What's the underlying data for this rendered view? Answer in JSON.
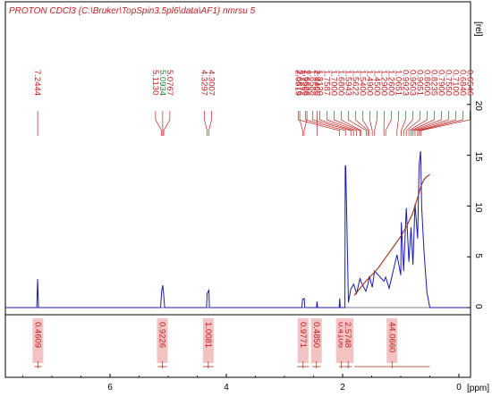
{
  "header": {
    "title": "PROTON CDCl3 {C:\\Bruker\\TopSpin3.5pl6\\data\\AF1} nmrsu 5"
  },
  "colors": {
    "spectrum": "#1a1ab0",
    "integral_curve": "#a03010",
    "peak_label": "#c02020",
    "peak_label_alt": "#2a7a3a",
    "integral_box": "#f3c2c2",
    "frame": "#000000"
  },
  "chart_data": {
    "type": "line",
    "title": "PROTON CDCl3 {C:\\Bruker\\TopSpin3.5pl6\\data\\AF1} nmrsu 5",
    "xlabel": "[ppm]",
    "ylabel": "[rel]",
    "xlim": [
      7.8,
      -0.2
    ],
    "ylim": [
      -1,
      25
    ],
    "x_reversed": true,
    "x_ticks": [
      "6",
      "4",
      "2",
      "0"
    ],
    "y_ticks": [
      "0",
      "5",
      "10",
      "15",
      "20"
    ],
    "peak_labels": [
      "7.2444",
      "5.1130",
      "5.0934",
      "5.0767",
      "4.3297",
      "4.3007",
      "2.6876",
      "2.6626",
      "2.4406",
      "2.0519",
      "1.9506",
      "1.8588",
      "1.8120",
      "1.7587",
      "1.7000",
      "1.6800",
      "1.5943",
      "1.5622",
      "1.5400",
      "1.4900",
      "1.4500",
      "1.2900",
      "1.2600",
      "1.0651",
      "0.9923",
      "0.9503",
      "0.9051",
      "0.8600",
      "0.8235",
      "0.7900",
      "0.7550",
      "0.7100",
      "0.6840",
      "0.6546"
    ],
    "peak_positions_ppm": [
      7.2444,
      5.113,
      5.0934,
      5.0767,
      4.3297,
      4.3007,
      2.6876,
      2.6626,
      2.4406,
      2.0519,
      1.9506,
      1.8588,
      1.812,
      1.7587,
      1.7,
      1.68,
      1.5943,
      1.5622,
      1.54,
      1.49,
      1.45,
      1.29,
      1.26,
      1.0651,
      0.9923,
      0.9503,
      0.9051,
      0.86,
      0.8235,
      0.79,
      0.755,
      0.71,
      0.684,
      0.6546
    ],
    "integrals": [
      {
        "label": "0.4609",
        "from": 7.3,
        "to": 7.18
      },
      {
        "label": "0.9226",
        "from": 5.18,
        "to": 5.02
      },
      {
        "label": "1.0081",
        "from": 4.4,
        "to": 4.22
      },
      {
        "label": "0.9771",
        "from": 2.78,
        "to": 2.58
      },
      {
        "label": "0.4850",
        "from": 2.52,
        "to": 2.38
      },
      {
        "label": "0.4106",
        "from": 2.06,
        "to": 1.98
      },
      {
        "label": "2.5748",
        "from": 1.97,
        "to": 1.84
      },
      {
        "label": "44.0660",
        "from": 1.8,
        "to": 0.5
      }
    ],
    "series": [
      {
        "x": [
          7.8,
          7.26,
          7.245,
          7.23,
          5.13,
          5.113,
          5.093,
          5.077,
          5.06,
          4.34,
          4.33,
          4.3,
          4.29,
          2.7,
          2.69,
          2.66,
          2.65,
          2.45,
          2.44,
          2.43,
          2.06,
          2.05,
          2.04,
          1.96,
          1.955,
          1.95,
          1.945,
          1.9,
          1.86,
          1.81,
          1.76,
          1.7,
          1.68,
          1.6,
          1.56,
          1.54,
          1.49,
          1.45,
          1.29,
          1.26,
          1.2,
          1.065,
          1.0,
          0.99,
          0.95,
          0.905,
          0.86,
          0.823,
          0.79,
          0.755,
          0.71,
          0.684,
          0.66,
          0.6546,
          0.64,
          0.6,
          0.55,
          0.5,
          -0.2
        ],
        "y": [
          0,
          0,
          2.8,
          0,
          0,
          1.6,
          2.2,
          1.2,
          0,
          0,
          1.4,
          1.7,
          0,
          0,
          0.8,
          0.9,
          0,
          0,
          0.6,
          0,
          0,
          0.9,
          0,
          0,
          13.9,
          14.0,
          13.6,
          0.5,
          1.8,
          2.3,
          1.4,
          2.9,
          2.5,
          1.6,
          2.4,
          3.1,
          2.0,
          3.6,
          2.6,
          3.0,
          1.9,
          5.2,
          3.2,
          8.4,
          3.6,
          9.8,
          4.5,
          7.9,
          4.2,
          10.2,
          6.8,
          14.0,
          15.4,
          14.4,
          9.9,
          5.5,
          1.5,
          0,
          0
        ]
      },
      {
        "x": [
          1.8,
          1.6,
          1.4,
          1.2,
          1.0,
          0.9,
          0.8,
          0.7,
          0.65,
          0.6,
          0.55,
          0.5
        ],
        "y": [
          1.2,
          2.6,
          3.8,
          5.4,
          7.0,
          8.0,
          9.2,
          11.0,
          12.0,
          12.6,
          12.9,
          13.1
        ]
      }
    ]
  }
}
